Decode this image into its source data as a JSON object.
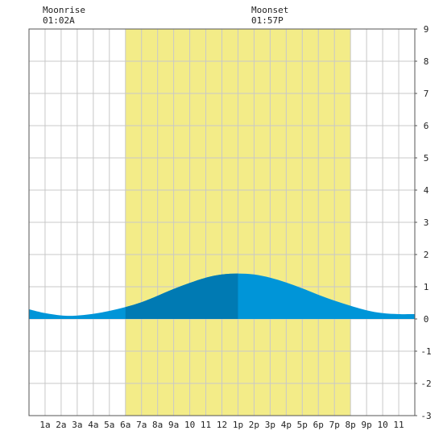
{
  "chart_data": {
    "type": "area",
    "title": "",
    "xlabel": "",
    "ylabel": "",
    "x_ticks": [
      "1a",
      "2a",
      "3a",
      "4a",
      "5a",
      "6a",
      "7a",
      "8a",
      "9a",
      "10",
      "11",
      "12",
      "1p",
      "2p",
      "3p",
      "4p",
      "5p",
      "6p",
      "7p",
      "8p",
      "9p",
      "10",
      "11"
    ],
    "x_range_hours": [
      0,
      24
    ],
    "ylim": [
      -3,
      9
    ],
    "y_ticks": [
      -3,
      -2,
      -1,
      0,
      1,
      2,
      3,
      4,
      5,
      6,
      7,
      8,
      9
    ],
    "grid": true,
    "daylight_hours": [
      6,
      20
    ],
    "moon_events": [
      {
        "label": "Moonrise",
        "time": "01:02A"
      },
      {
        "label": "Moonset",
        "time": "01:57P"
      }
    ],
    "series": [
      {
        "x": [
          0,
          1,
          2,
          2.8,
          4,
          5,
          6,
          7,
          8,
          9,
          10,
          11,
          12,
          13,
          14,
          15,
          16,
          17,
          18,
          19,
          20,
          21,
          22,
          23,
          24
        ],
        "y": [
          0.3,
          0.18,
          0.11,
          0.1,
          0.16,
          0.25,
          0.37,
          0.52,
          0.72,
          0.93,
          1.12,
          1.28,
          1.38,
          1.41,
          1.38,
          1.28,
          1.13,
          0.95,
          0.75,
          0.57,
          0.41,
          0.27,
          0.18,
          0.15,
          0.15
        ]
      }
    ],
    "dark_until_hour": 13
  },
  "colors": {
    "daylight": "#f3ec88",
    "grid": "#c8c8c8",
    "water_light": "#0095d8",
    "water_dark": "#007ab3",
    "frame": "#555555"
  }
}
